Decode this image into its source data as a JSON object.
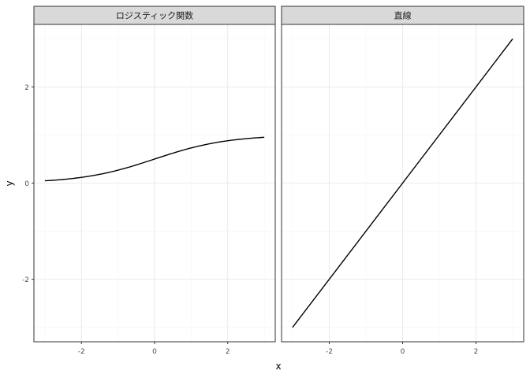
{
  "chart_data": {
    "type": "line",
    "xlabel": "x",
    "ylabel": "y",
    "xlim": [
      -3.3,
      3.3
    ],
    "ylim": [
      -3.3,
      3.3
    ],
    "x_ticks": [
      -2,
      0,
      2
    ],
    "x_tick_labels": [
      "-2",
      "0",
      "2"
    ],
    "y_ticks": [
      -2,
      0,
      2
    ],
    "y_tick_labels": [
      "-2",
      "0",
      "2"
    ],
    "grid": true,
    "theme_colors": {
      "strip_bg": "#d9d9d9",
      "border": "#333333",
      "grid_major": "#ebebeb",
      "grid_minor": "#f5f5f5",
      "line": "#000000"
    },
    "panels": [
      {
        "title": "ロジスティック関数",
        "x": [
          -3,
          -2.5,
          -2,
          -1.5,
          -1,
          -0.5,
          0,
          0.5,
          1,
          1.5,
          2,
          2.5,
          3
        ],
        "y": [
          0.047,
          0.076,
          0.119,
          0.182,
          0.269,
          0.378,
          0.5,
          0.622,
          0.731,
          0.818,
          0.881,
          0.924,
          0.953
        ]
      },
      {
        "title": "直線",
        "x": [
          -3,
          3
        ],
        "y": [
          -3,
          3
        ]
      }
    ]
  }
}
